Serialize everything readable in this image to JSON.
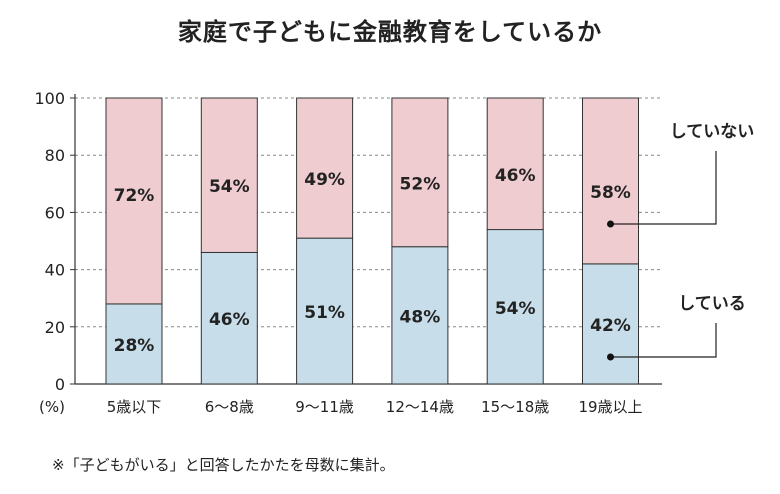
{
  "chart_data": {
    "type": "bar",
    "stacked": true,
    "percent_stacked": true,
    "title": "家庭で子どもに金融教育をしているか",
    "ylabel": "(%)",
    "xlabel": "",
    "ylim": [
      0,
      100
    ],
    "yticks": [
      0,
      20,
      40,
      60,
      80,
      100
    ],
    "grid": true,
    "categories": [
      "5歳以下",
      "6～8歳",
      "9～11歳",
      "12～14歳",
      "15～18歳",
      "19歳以上"
    ],
    "series": [
      {
        "name": "している",
        "values": [
          28,
          46,
          51,
          48,
          54,
          42
        ],
        "labels": [
          "28%",
          "46%",
          "51%",
          "48%",
          "54%",
          "42%"
        ],
        "color": "#c7dde9"
      },
      {
        "name": "していない",
        "values": [
          72,
          54,
          49,
          52,
          46,
          58
        ],
        "labels": [
          "72%",
          "54%",
          "49%",
          "52%",
          "46%",
          "58%"
        ],
        "color": "#efccd0"
      }
    ],
    "footnote": "※「子どもがいる」と回答したかたを母数に集計。"
  }
}
